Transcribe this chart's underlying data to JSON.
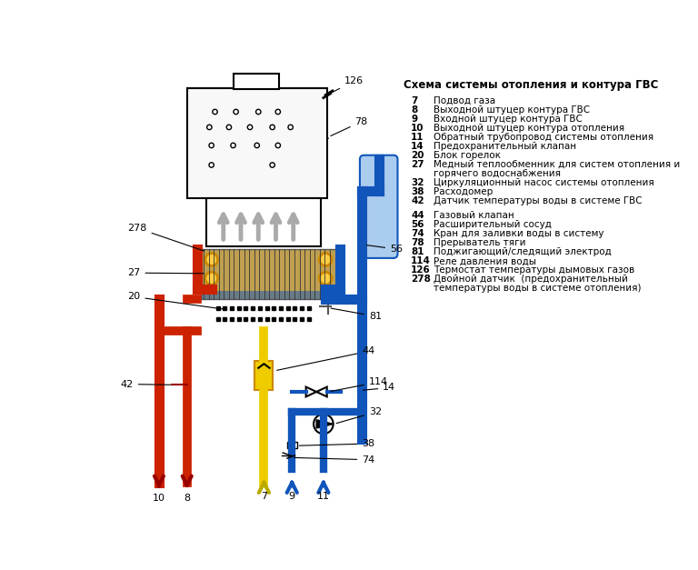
{
  "title": "Схема системы отопления и контура ГВС",
  "bg_color": "#ffffff",
  "boiler_fill": "#f8f8f8",
  "heat_ex_bg": "#c0a050",
  "legend": [
    [
      "7",
      "Подвод газа"
    ],
    [
      "8",
      "Выходной штуцер контура ГВС"
    ],
    [
      "9",
      "Входной штуцер контура ГВС"
    ],
    [
      "10",
      "Выходной штуцер контура отопления"
    ],
    [
      "11",
      "Обратный трубопровод системы отопления"
    ],
    [
      "14",
      "Предохранительный клапан"
    ],
    [
      "20",
      "Блок горелок"
    ],
    [
      "27",
      "Медный теплообменник для систем отопления и"
    ],
    [
      "",
      "горячего водоснабжения"
    ],
    [
      "32",
      "Циркуляционный насос системы отопления"
    ],
    [
      "38",
      "Расходомер"
    ],
    [
      "42",
      "Датчик температуры воды в системе ГВС"
    ],
    [
      "",
      ""
    ],
    [
      "44",
      "Газовый клапан"
    ],
    [
      "56",
      "Расширительный сосуд"
    ],
    [
      "74",
      "Кран для заливки воды в систему"
    ],
    [
      "78",
      "Прерыватель тяги"
    ],
    [
      "81",
      "Поджигающий/следящий электрод"
    ],
    [
      "114",
      "Реле давления воды"
    ],
    [
      "126",
      "Термостат температуры дымовых газов"
    ],
    [
      "278",
      "Двойной датчик  (предохранительный"
    ],
    [
      "",
      "температуры воды в системе отопления)"
    ]
  ],
  "red": "#cc2200",
  "dark_red": "#990000",
  "blue": "#1155bb",
  "yellow": "#eecc00",
  "gold": "#cc8800"
}
